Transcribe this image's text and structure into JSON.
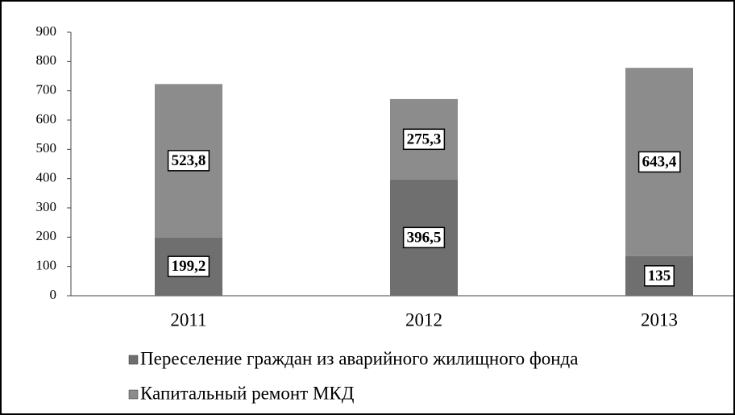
{
  "chart_data": {
    "type": "stacked_bar",
    "categories": [
      "2011",
      "2012",
      "2013"
    ],
    "series": [
      {
        "name": "Переселение граждан из аварийного жилищного фонда",
        "color": "#6f6f6f",
        "values": [
          199.2,
          396.5,
          135
        ],
        "value_labels": [
          "199,2",
          "396,5",
          "135"
        ]
      },
      {
        "name": "Капитальный ремонт МКД",
        "color": "#8c8c8c",
        "values": [
          523.8,
          275.3,
          643.4
        ],
        "value_labels": [
          "523,8",
          "275,3",
          "643,4"
        ]
      }
    ],
    "ylim": [
      0,
      900
    ],
    "yticks": [
      0,
      100,
      200,
      300,
      400,
      500,
      600,
      700,
      800,
      900
    ],
    "legend": "bottom"
  }
}
